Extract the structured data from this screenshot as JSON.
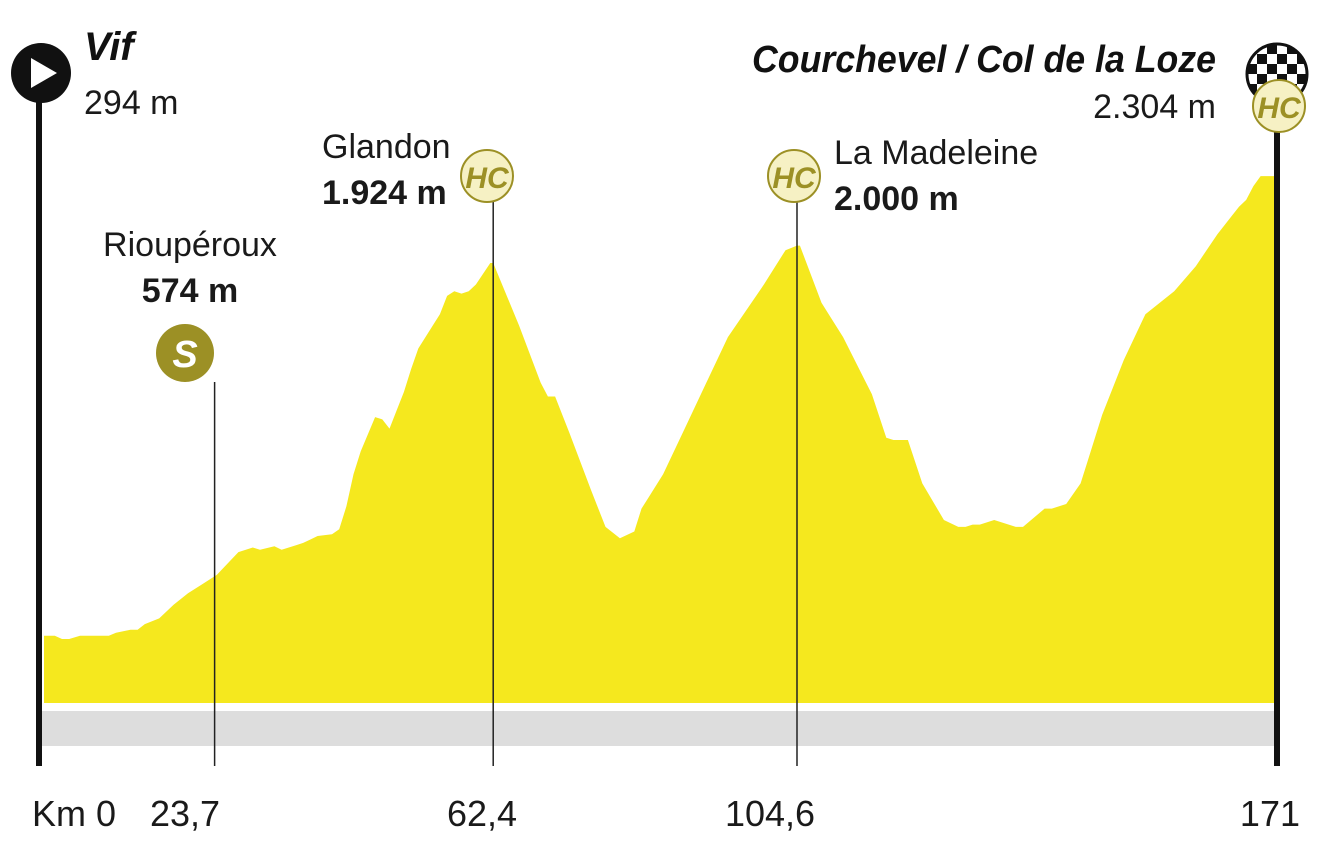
{
  "colors": {
    "profile_fill": "#F5E81E",
    "road_band": "#DDDDDD",
    "axis": "#111111",
    "badge": "#9C9025",
    "badge_light": "#F6F1C4",
    "text": "#1A1A1A"
  },
  "start": {
    "name": "Vif",
    "altitude": "294 m",
    "icon": "start-play-icon"
  },
  "finish": {
    "name": "Courchevel / Col de la Loze",
    "altitude": "2.304 m",
    "icon": "checkered-flag-icon",
    "category": "HC"
  },
  "climbs": [
    {
      "name": "Rioupéroux",
      "altitude": "574 m",
      "category": "S",
      "km_label": "23,7"
    },
    {
      "name": "Glandon",
      "altitude": "1.924 m",
      "category": "HC",
      "km_label": "62,4"
    },
    {
      "name": "La Madeleine",
      "altitude": "2.000 m",
      "category": "HC",
      "km_label": "104,6"
    }
  ],
  "km_axis": {
    "start_label": "Km 0",
    "end_label": "171"
  },
  "chart_data": {
    "type": "area",
    "x_unit": "km",
    "y_unit": "m",
    "xlim": [
      0,
      171
    ],
    "x": [
      0,
      1.5,
      2.5,
      3.5,
      5,
      9,
      10,
      12,
      13,
      14,
      16,
      18,
      20,
      22,
      24,
      27,
      29,
      30,
      32,
      33,
      35,
      36,
      37,
      38,
      40,
      41,
      42,
      43,
      44,
      46,
      47,
      48,
      49,
      50,
      51,
      52,
      54,
      55,
      56,
      57,
      58,
      59,
      60,
      62,
      62.4,
      66,
      69,
      70,
      71,
      73,
      76,
      78,
      80,
      82,
      83,
      84,
      86,
      89,
      92,
      95,
      100,
      103,
      104.6,
      105,
      108,
      109,
      111,
      115,
      117,
      118,
      119,
      120,
      122,
      125,
      127,
      128,
      129,
      130,
      132,
      135,
      136,
      139,
      140,
      142,
      144,
      145,
      147,
      150,
      153,
      157,
      160,
      163,
      165,
      166,
      167,
      168,
      169,
      171
    ],
    "y": [
      294,
      294,
      280,
      280,
      294,
      294,
      307,
      320,
      320,
      345,
      370,
      430,
      480,
      520,
      560,
      660,
      680,
      670,
      685,
      670,
      690,
      700,
      715,
      730,
      738,
      760,
      860,
      1000,
      1100,
      1250,
      1240,
      1200,
      1280,
      1360,
      1460,
      1550,
      1650,
      1700,
      1780,
      1800,
      1790,
      1800,
      1830,
      1924,
      1924,
      1650,
      1400,
      1340,
      1340,
      1180,
      930,
      770,
      720,
      750,
      850,
      900,
      1000,
      1200,
      1400,
      1600,
      1830,
      1980,
      2000,
      2000,
      1750,
      1700,
      1600,
      1350,
      1160,
      1150,
      1150,
      1150,
      960,
      800,
      770,
      770,
      780,
      780,
      800,
      770,
      770,
      850,
      850,
      870,
      960,
      1060,
      1260,
      1500,
      1700,
      1800,
      1910,
      2050,
      2130,
      2170,
      2200,
      2260,
      2304,
      2304
    ],
    "annotated_points": [
      {
        "x": 23.7,
        "name": "Rioupéroux",
        "y": 574,
        "category": "S"
      },
      {
        "x": 62.4,
        "name": "Glandon",
        "y": 1924,
        "category": "HC"
      },
      {
        "x": 104.6,
        "name": "La Madeleine",
        "y": 2000,
        "category": "HC"
      },
      {
        "x": 171,
        "name": "Courchevel / Col de la Loze",
        "y": 2304,
        "category": "HC"
      }
    ],
    "x_tick_labels": [
      "Km 0",
      "23,7",
      "62,4",
      "104,6",
      "171"
    ]
  }
}
